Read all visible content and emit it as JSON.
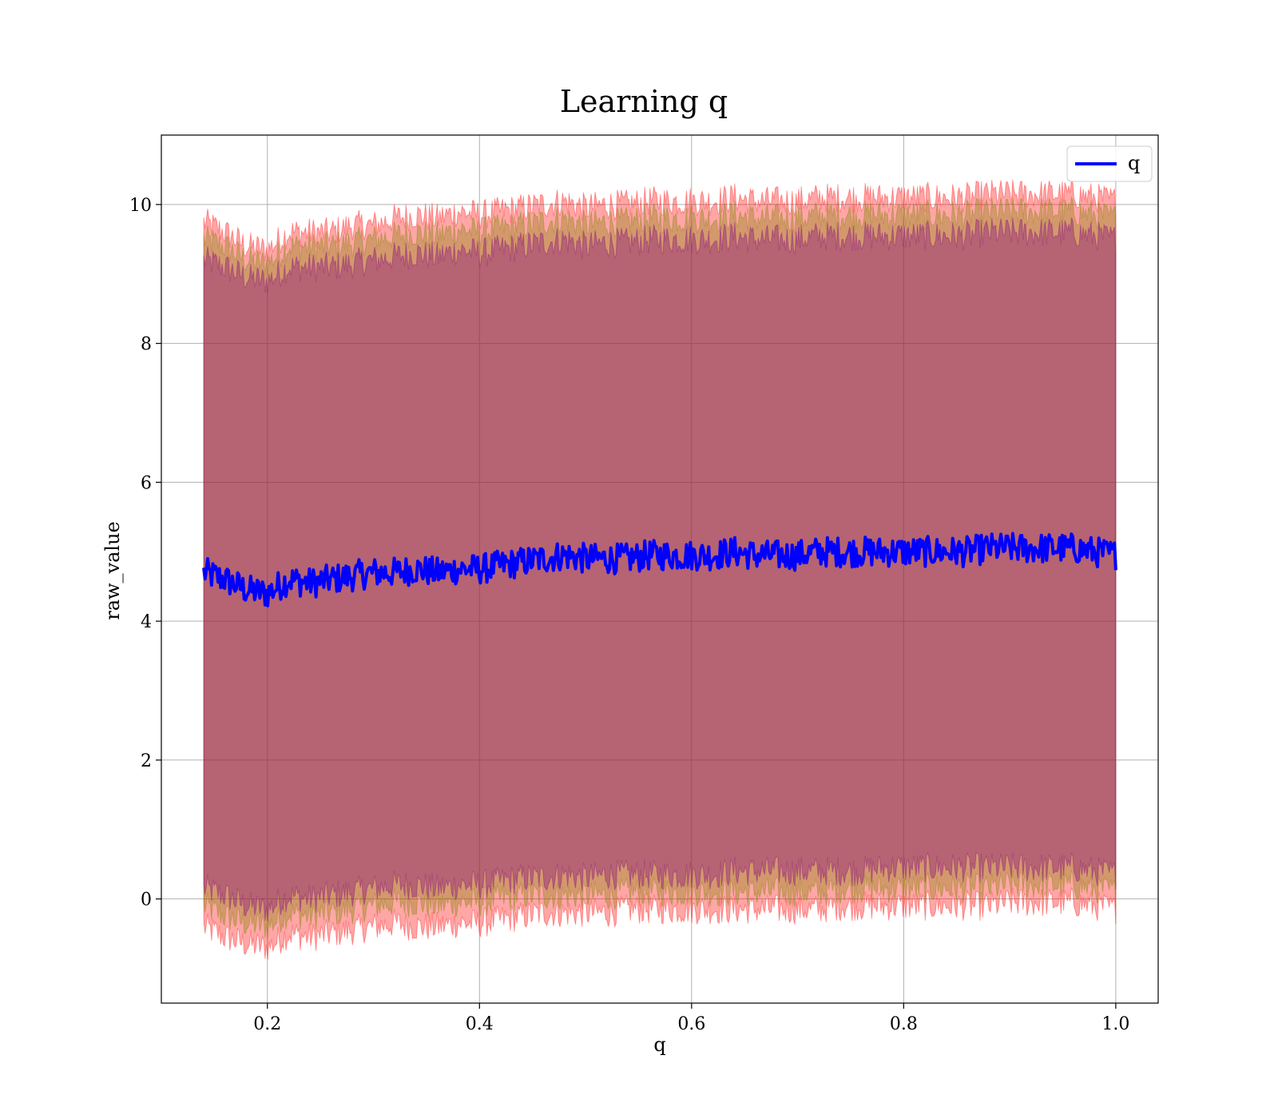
{
  "chart_data": {
    "type": "line",
    "title": "Learning q",
    "xlabel": "q",
    "ylabel": "raw_value",
    "xlim": [
      0.1,
      1.04
    ],
    "ylim": [
      -1.5,
      11.0
    ],
    "xticks": [
      0.2,
      0.4,
      0.6,
      0.8,
      1.0
    ],
    "xtick_labels": [
      "0.2",
      "0.4",
      "0.6",
      "0.8",
      "1.0"
    ],
    "yticks": [
      0,
      2,
      4,
      6,
      8,
      10
    ],
    "ytick_labels": [
      "0",
      "2",
      "4",
      "6",
      "8",
      "10"
    ],
    "grid": true,
    "legend": {
      "placement": "top-right",
      "entries": [
        {
          "label": "q",
          "color": "#0000ff"
        }
      ]
    },
    "series": [
      {
        "name": "q",
        "color": "#0000ff",
        "x": [
          0.14,
          0.16,
          0.18,
          0.2,
          0.22,
          0.24,
          0.26,
          0.28,
          0.3,
          0.32,
          0.34,
          0.36,
          0.38,
          0.4,
          0.42,
          0.44,
          0.46,
          0.48,
          0.5,
          0.52,
          0.54,
          0.56,
          0.58,
          0.6,
          0.62,
          0.64,
          0.66,
          0.68,
          0.7,
          0.72,
          0.74,
          0.76,
          0.78,
          0.8,
          0.82,
          0.84,
          0.86,
          0.88,
          0.9,
          0.92,
          0.94,
          0.96,
          0.98,
          1.0
        ],
        "values": [
          4.7,
          4.6,
          4.45,
          4.4,
          4.6,
          4.55,
          4.6,
          4.65,
          4.7,
          4.7,
          4.75,
          4.7,
          4.75,
          4.75,
          4.8,
          4.85,
          4.9,
          4.95,
          4.9,
          4.9,
          4.9,
          4.95,
          4.95,
          4.95,
          4.95,
          5.0,
          4.95,
          4.95,
          4.95,
          5.0,
          5.0,
          5.0,
          5.0,
          5.0,
          5.0,
          5.0,
          5.0,
          5.05,
          5.05,
          5.05,
          5.05,
          5.05,
          5.0,
          4.95
        ]
      }
    ],
    "bands": [
      {
        "color": "#ff0000",
        "x": [
          0.14,
          0.16,
          0.18,
          0.2,
          0.22,
          0.24,
          0.26,
          0.28,
          0.3,
          0.32,
          0.34,
          0.36,
          0.38,
          0.4,
          0.42,
          0.44,
          0.46,
          0.48,
          0.5,
          0.52,
          0.54,
          0.56,
          0.58,
          0.6,
          0.62,
          0.64,
          0.66,
          0.68,
          0.7,
          0.72,
          0.74,
          0.76,
          0.78,
          0.8,
          0.82,
          0.84,
          0.86,
          0.88,
          0.9,
          0.92,
          0.94,
          0.96,
          0.98,
          1.0
        ],
        "upper": [
          9.75,
          9.6,
          9.4,
          9.35,
          9.6,
          9.6,
          9.6,
          9.7,
          9.7,
          9.8,
          9.85,
          9.8,
          9.9,
          9.85,
          9.9,
          9.95,
          10.0,
          10.05,
          9.95,
          10.0,
          10.0,
          10.05,
          10.05,
          10.05,
          10.05,
          10.1,
          10.05,
          10.05,
          10.05,
          10.1,
          10.1,
          10.1,
          10.1,
          10.1,
          10.1,
          10.1,
          10.1,
          10.15,
          10.15,
          10.15,
          10.15,
          10.15,
          10.1,
          10.05
        ],
        "lower": [
          -0.4,
          -0.55,
          -0.65,
          -0.7,
          -0.5,
          -0.55,
          -0.5,
          -0.45,
          -0.4,
          -0.35,
          -0.4,
          -0.4,
          -0.35,
          -0.35,
          -0.3,
          -0.25,
          -0.2,
          -0.2,
          -0.2,
          -0.2,
          -0.15,
          -0.15,
          -0.15,
          -0.15,
          -0.15,
          -0.15,
          -0.15,
          -0.15,
          -0.15,
          -0.15,
          -0.1,
          -0.1,
          -0.1,
          -0.1,
          -0.1,
          -0.1,
          -0.1,
          -0.1,
          -0.05,
          -0.05,
          -0.05,
          -0.05,
          -0.1,
          -0.15
        ]
      },
      {
        "color": "#808000",
        "x": [
          0.14,
          0.16,
          0.18,
          0.2,
          0.22,
          0.24,
          0.26,
          0.28,
          0.3,
          0.32,
          0.34,
          0.36,
          0.38,
          0.4,
          0.42,
          0.44,
          0.46,
          0.48,
          0.5,
          0.52,
          0.54,
          0.56,
          0.58,
          0.6,
          0.62,
          0.64,
          0.66,
          0.68,
          0.7,
          0.72,
          0.74,
          0.76,
          0.78,
          0.8,
          0.82,
          0.84,
          0.86,
          0.88,
          0.9,
          0.92,
          0.94,
          0.96,
          0.98,
          1.0
        ],
        "upper": [
          9.5,
          9.4,
          9.2,
          9.15,
          9.4,
          9.4,
          9.4,
          9.45,
          9.5,
          9.55,
          9.6,
          9.55,
          9.65,
          9.6,
          9.65,
          9.7,
          9.75,
          9.8,
          9.7,
          9.75,
          9.75,
          9.8,
          9.8,
          9.8,
          9.8,
          9.85,
          9.8,
          9.8,
          9.8,
          9.85,
          9.85,
          9.85,
          9.85,
          9.85,
          9.85,
          9.85,
          9.85,
          9.9,
          9.9,
          9.9,
          9.9,
          9.9,
          9.85,
          9.8
        ],
        "lower": [
          -0.1,
          -0.25,
          -0.35,
          -0.4,
          -0.2,
          -0.25,
          -0.2,
          -0.15,
          -0.1,
          -0.05,
          -0.05,
          -0.1,
          -0.05,
          -0.05,
          0.0,
          0.05,
          0.05,
          0.05,
          0.05,
          0.05,
          0.1,
          0.1,
          0.1,
          0.1,
          0.1,
          0.1,
          0.1,
          0.1,
          0.1,
          0.1,
          0.15,
          0.15,
          0.15,
          0.15,
          0.15,
          0.15,
          0.15,
          0.15,
          0.2,
          0.2,
          0.2,
          0.2,
          0.15,
          0.1
        ]
      },
      {
        "color": "#800080",
        "x": [
          0.14,
          0.16,
          0.18,
          0.2,
          0.22,
          0.24,
          0.26,
          0.28,
          0.3,
          0.32,
          0.34,
          0.36,
          0.38,
          0.4,
          0.42,
          0.44,
          0.46,
          0.48,
          0.5,
          0.52,
          0.54,
          0.56,
          0.58,
          0.6,
          0.62,
          0.64,
          0.66,
          0.68,
          0.7,
          0.72,
          0.74,
          0.76,
          0.78,
          0.8,
          0.82,
          0.84,
          0.86,
          0.88,
          0.9,
          0.92,
          0.94,
          0.96,
          0.98,
          1.0
        ],
        "upper": [
          9.2,
          9.1,
          8.95,
          8.9,
          9.1,
          9.1,
          9.1,
          9.15,
          9.2,
          9.25,
          9.3,
          9.25,
          9.35,
          9.3,
          9.35,
          9.4,
          9.45,
          9.5,
          9.4,
          9.45,
          9.45,
          9.5,
          9.5,
          9.5,
          9.5,
          9.55,
          9.5,
          9.5,
          9.5,
          9.55,
          9.55,
          9.55,
          9.55,
          9.55,
          9.55,
          9.55,
          9.55,
          9.6,
          9.6,
          9.6,
          9.6,
          9.6,
          9.55,
          9.5
        ],
        "lower": [
          0.15,
          0.05,
          -0.1,
          -0.15,
          0.05,
          0.0,
          0.05,
          0.1,
          0.15,
          0.2,
          0.2,
          0.15,
          0.2,
          0.2,
          0.25,
          0.3,
          0.3,
          0.35,
          0.3,
          0.35,
          0.35,
          0.35,
          0.35,
          0.35,
          0.35,
          0.4,
          0.4,
          0.4,
          0.4,
          0.4,
          0.4,
          0.4,
          0.45,
          0.45,
          0.45,
          0.45,
          0.45,
          0.45,
          0.45,
          0.45,
          0.45,
          0.45,
          0.4,
          0.35
        ]
      }
    ]
  }
}
